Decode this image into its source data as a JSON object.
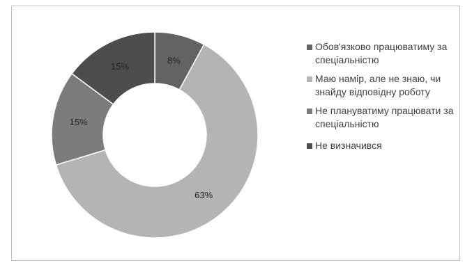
{
  "chart_data": {
    "type": "pie",
    "variant": "donut",
    "title": "",
    "categories": [
      "Обов'язково працюватиму за спеціальністю",
      "Маю намір, але не знаю, чи знайду відповідну роботу",
      "Не плануватиму працювати за спеціальністю",
      "Не визначився"
    ],
    "values": [
      8,
      63,
      15,
      15
    ],
    "labels": [
      "8%",
      "63%",
      "15%",
      "15%"
    ],
    "colors": [
      "#636363",
      "#b4b4b4",
      "#7c7c7c",
      "#4d4d4d"
    ],
    "legend_position": "right"
  },
  "legend": {
    "items": [
      {
        "label": "Обов'язково працюватиму за спеціальністю"
      },
      {
        "label": "Маю намір, але не знаю, чи знайду відповідну роботу"
      },
      {
        "label": "Не плануватиму працювати за спеціальністю"
      },
      {
        "label": "Не визначився"
      }
    ]
  }
}
